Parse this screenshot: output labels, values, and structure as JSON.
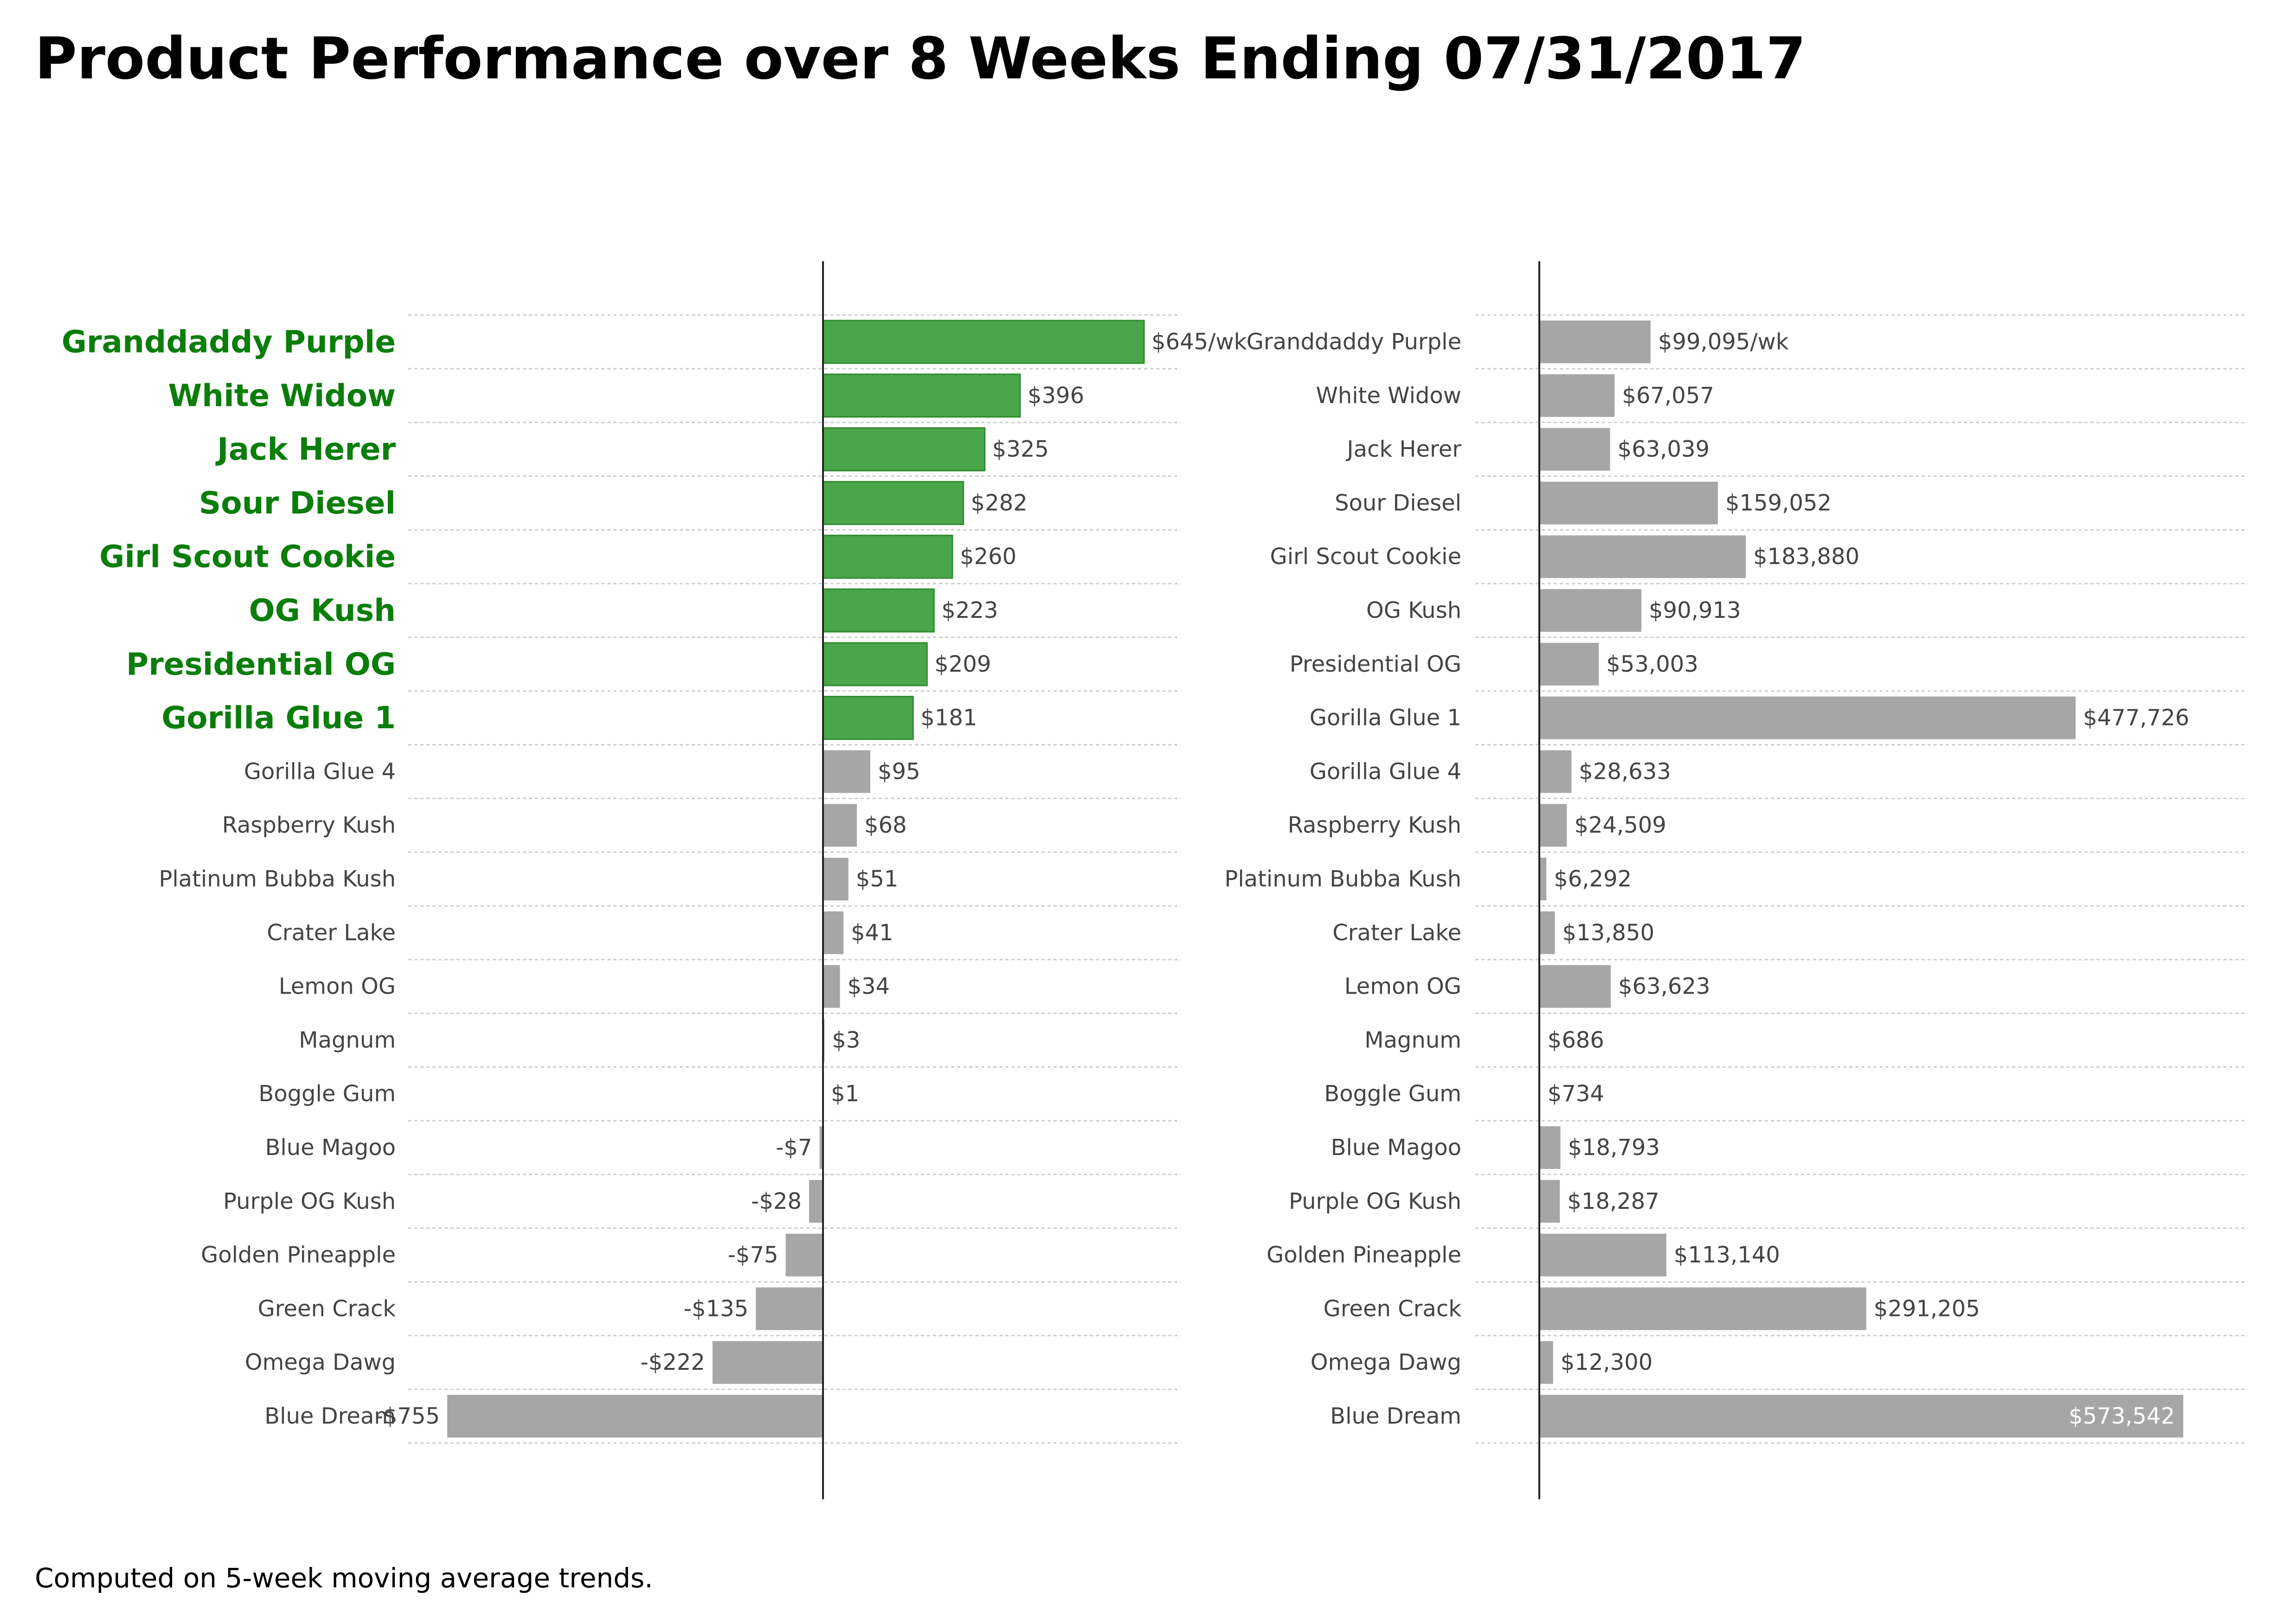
{
  "title": "Product Performance over 8 Weeks Ending 07/31/2017",
  "footnote": "Computed on 5-week moving average trends.",
  "colors": {
    "highlight": "#4aa64a",
    "highlight_edge": "#2e8b2e",
    "highlight_label": "#0a7d0a",
    "neutral": "#a6a6a6",
    "label": "#444444",
    "inside_label": "#ffffff",
    "grid": "#cccccc",
    "axis": "#222222"
  },
  "chart_data": [
    {
      "type": "bar",
      "orientation": "horizontal",
      "categories": [
        "Granddaddy Purple",
        "White Widow",
        "Jack Herer",
        "Sour Diesel",
        "Girl Scout Cookie",
        "OG Kush",
        "Presidential OG",
        "Gorilla Glue 1",
        "Gorilla Glue 4",
        "Raspberry Kush",
        "Platinum Bubba Kush",
        "Crater Lake",
        "Lemon OG",
        "Magnum",
        "Boggle Gum",
        "Blue Magoo",
        "Purple OG Kush",
        "Golden Pineapple",
        "Green Crack",
        "Omega Dawg",
        "Blue Dream"
      ],
      "values": [
        645,
        396,
        325,
        282,
        260,
        223,
        209,
        181,
        95,
        68,
        51,
        41,
        34,
        3,
        1,
        -7,
        -28,
        -75,
        -135,
        -222,
        -755
      ],
      "value_labels": [
        "$645/wk",
        "$396",
        "$325",
        "$282",
        "$260",
        "$223",
        "$209",
        "$181",
        "$95",
        "$68",
        "$51",
        "$41",
        "$34",
        "$3",
        "$1",
        "-$7",
        "-$28",
        "-$75",
        "-$135",
        "-$222",
        "-$755"
      ],
      "highlighted": [
        "Granddaddy Purple",
        "White Widow",
        "Jack Herer",
        "Sour Diesel",
        "Girl Scout Cookie",
        "OG Kush",
        "Presidential OG",
        "Gorilla Glue 1"
      ],
      "xlim": [
        -755,
        645
      ],
      "grid": "horizontal dotted"
    },
    {
      "type": "bar",
      "orientation": "horizontal",
      "categories": [
        "Granddaddy Purple",
        "White Widow",
        "Jack Herer",
        "Sour Diesel",
        "Girl Scout Cookie",
        "OG Kush",
        "Presidential OG",
        "Gorilla Glue 1",
        "Gorilla Glue 4",
        "Raspberry Kush",
        "Platinum Bubba Kush",
        "Crater Lake",
        "Lemon OG",
        "Magnum",
        "Boggle Gum",
        "Blue Magoo",
        "Purple OG Kush",
        "Golden Pineapple",
        "Green Crack",
        "Omega Dawg",
        "Blue Dream"
      ],
      "values": [
        99095,
        67057,
        63039,
        159052,
        183880,
        90913,
        53003,
        477726,
        28633,
        24509,
        6292,
        13850,
        63623,
        686,
        734,
        18793,
        18287,
        113140,
        291205,
        12300,
        573542
      ],
      "value_labels": [
        "$99,095/wk",
        "$67,057",
        "$63,039",
        "$159,052",
        "$183,880",
        "$90,913",
        "$53,003",
        "$477,726",
        "$28,633",
        "$24,509",
        "$6,292",
        "$13,850",
        "$63,623",
        "$686",
        "$734",
        "$18,793",
        "$18,287",
        "$113,140",
        "$291,205",
        "$12,300",
        "$573,542"
      ],
      "xlim": [
        0,
        573542
      ],
      "grid": "horizontal dotted"
    }
  ]
}
